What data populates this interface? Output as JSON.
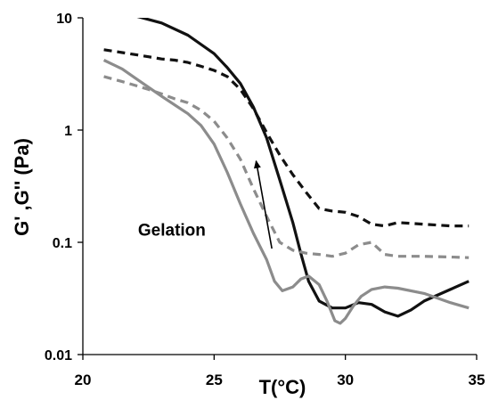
{
  "chart_data": {
    "type": "line",
    "xlabel": "T(°C)",
    "ylabel": "G' ,G'' (Pa)",
    "x_scale": "linear",
    "y_scale": "log",
    "xlim": [
      20,
      35
    ],
    "ylim": [
      0.01,
      10
    ],
    "x_ticks": [
      20,
      25,
      30,
      35
    ],
    "x_tick_labels": [
      "20",
      "25",
      "30",
      "35"
    ],
    "y_ticks": [
      0.01,
      0.1,
      1,
      10
    ],
    "y_tick_labels": [
      "0.01",
      "0.1",
      "1",
      "10"
    ],
    "grid": false,
    "annotation": {
      "text": "Gelation",
      "x": 22.1,
      "y": 0.13,
      "arrow_from": [
        27.2,
        0.088
      ],
      "arrow_to": [
        26.6,
        0.53
      ]
    },
    "series": [
      {
        "color": "#111111",
        "style": "solid",
        "x": [
          20.8,
          21.5,
          22.0,
          23.0,
          24.0,
          25.0,
          25.5,
          26.0,
          26.5,
          27.0,
          27.5,
          28.0,
          28.3,
          28.6,
          29.0,
          29.5,
          30.0,
          30.5,
          31.0,
          31.5,
          32.0,
          32.5,
          33.0,
          34.0,
          34.7
        ],
        "y": [
          10.5,
          10.6,
          10.4,
          9.0,
          7.0,
          4.8,
          3.6,
          2.6,
          1.6,
          0.85,
          0.36,
          0.15,
          0.08,
          0.045,
          0.03,
          0.026,
          0.026,
          0.029,
          0.028,
          0.024,
          0.022,
          0.025,
          0.03,
          0.038,
          0.045
        ]
      },
      {
        "color": "#111111",
        "style": "dashed",
        "x": [
          20.8,
          21.5,
          22.0,
          22.5,
          23.0,
          23.5,
          24.0,
          24.5,
          25.0,
          25.5,
          26.0,
          26.5,
          27.0,
          27.5,
          28.0,
          28.5,
          29.0,
          29.5,
          30.0,
          30.5,
          31.0,
          31.5,
          32.0,
          33.0,
          34.0,
          34.7
        ],
        "y": [
          5.2,
          4.9,
          4.7,
          4.5,
          4.3,
          4.2,
          4.0,
          3.7,
          3.4,
          3.0,
          2.3,
          1.55,
          0.95,
          0.6,
          0.4,
          0.28,
          0.2,
          0.19,
          0.185,
          0.17,
          0.145,
          0.14,
          0.15,
          0.145,
          0.14,
          0.14
        ]
      },
      {
        "color": "#8c8c8c",
        "style": "solid",
        "x": [
          20.8,
          21.5,
          22.0,
          23.0,
          24.0,
          24.5,
          25.0,
          25.5,
          26.0,
          26.5,
          27.0,
          27.3,
          27.6,
          28.0,
          28.3,
          28.6,
          29.0,
          29.3,
          29.6,
          29.8,
          30.0,
          30.3,
          30.6,
          31.0,
          31.5,
          32.0,
          33.0,
          34.0,
          34.7
        ],
        "y": [
          4.2,
          3.5,
          2.9,
          2.0,
          1.4,
          1.1,
          0.75,
          0.42,
          0.22,
          0.12,
          0.07,
          0.045,
          0.037,
          0.04,
          0.047,
          0.05,
          0.042,
          0.03,
          0.02,
          0.019,
          0.021,
          0.027,
          0.033,
          0.038,
          0.04,
          0.039,
          0.035,
          0.029,
          0.026
        ]
      },
      {
        "color": "#8c8c8c",
        "style": "dashed",
        "x": [
          20.8,
          21.5,
          22.0,
          22.5,
          23.0,
          23.5,
          24.0,
          24.5,
          25.0,
          25.5,
          26.0,
          26.5,
          27.0,
          27.5,
          28.0,
          28.5,
          29.0,
          29.5,
          30.0,
          30.5,
          31.0,
          31.5,
          32.0,
          33.0,
          34.0,
          34.7
        ],
        "y": [
          3.0,
          2.7,
          2.5,
          2.3,
          2.1,
          1.9,
          1.75,
          1.5,
          1.2,
          0.85,
          0.55,
          0.3,
          0.17,
          0.1,
          0.085,
          0.08,
          0.078,
          0.075,
          0.08,
          0.095,
          0.1,
          0.078,
          0.075,
          0.075,
          0.074,
          0.073
        ]
      }
    ]
  }
}
